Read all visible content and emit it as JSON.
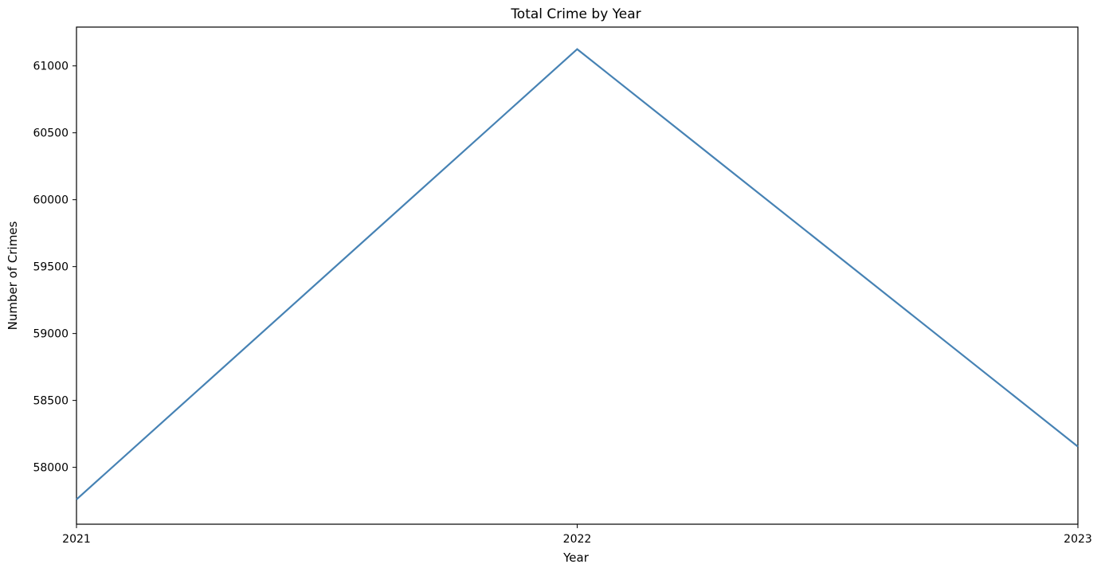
{
  "chart_data": {
    "type": "line",
    "title": "Total Crime by Year",
    "xlabel": "Year",
    "ylabel": "Number of Crimes",
    "categories": [
      "2021",
      "2022",
      "2023"
    ],
    "series": [
      {
        "values": [
          57760,
          61125,
          58155
        ],
        "color": "#4682b4"
      }
    ],
    "yticks": [
      58000,
      58500,
      59000,
      59500,
      60000,
      60500,
      61000
    ],
    "ylim": [
      57575,
      61290
    ],
    "grid": false,
    "legend": "none"
  }
}
